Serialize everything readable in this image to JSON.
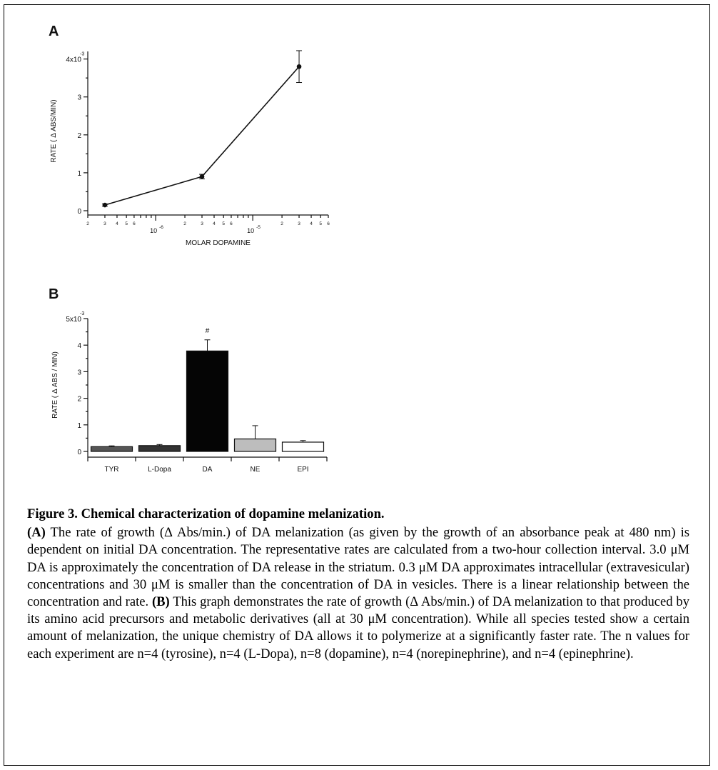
{
  "figure": {
    "panel_a_letter": "A",
    "panel_b_letter": "B"
  },
  "chart_data": [
    {
      "type": "line",
      "panel": "A",
      "x_scale": "log",
      "xlabel": "MOLAR DOPAMINE",
      "ylabel": "RATE ( Δ ABS/MIN)",
      "xlim": [
        2e-07,
        6e-05
      ],
      "ylim": [
        0,
        0.0042
      ],
      "x_tick_major_labels": [
        "10",
        "10"
      ],
      "x_tick_major_exponents": [
        "-6",
        "-5"
      ],
      "x_tick_minor_labels": [
        "2",
        "3",
        "4",
        "5",
        "6",
        "2",
        "3",
        "4",
        "5",
        "6",
        "2",
        "3",
        "4",
        "5",
        "6"
      ],
      "y_tick_labels": [
        "0",
        "1",
        "2",
        "3",
        "4x10"
      ],
      "y_tick_top_exponent": "-3",
      "series": [
        {
          "x": [
            3e-07,
            3e-06,
            3e-05
          ],
          "y": [
            0.00015,
            0.0009,
            0.0038
          ],
          "error": [
            3e-05,
            6e-05,
            0.00042
          ]
        }
      ]
    },
    {
      "type": "bar",
      "panel": "B",
      "ylabel": "RATE ( Δ ABS / MIN)",
      "ylim": [
        0,
        0.005
      ],
      "y_tick_labels": [
        "0",
        "1",
        "2",
        "3",
        "4",
        "5x10"
      ],
      "y_tick_top_exponent": "-3",
      "categories": [
        "TYR",
        "L-Dopa",
        "DA",
        "NE",
        "EPI"
      ],
      "values": [
        0.00018,
        0.00022,
        0.00378,
        0.00047,
        0.00035
      ],
      "errors": [
        3e-05,
        4e-05,
        0.00042,
        0.0005,
        6e-05
      ],
      "bar_colors": [
        "#555555",
        "#333333",
        "#050505",
        "#bdbdbd",
        "#ffffff"
      ],
      "annotations": [
        {
          "category": "DA",
          "text": "#"
        }
      ]
    }
  ],
  "caption": {
    "title": "Figure 3. Chemical characterization of dopamine melanization.",
    "a_label": "(A)",
    "a_text": " The rate of growth (Δ Abs/min.) of DA melanization (as given by the growth of an absorbance peak at 480 nm) is dependent on initial DA concentration. The representative rates are calculated from a two-hour collection interval. 3.0 μM DA is approximately the concentration of DA release in the striatum. 0.3 μM DA approximates intracellular (extravesicular) concentrations and 30 μM is smaller than the concentration of DA in vesicles. There is a linear relationship between the concentration and rate. ",
    "b_label": "(B)",
    "b_text": " This graph demonstrates the rate of growth (Δ Abs/min.) of DA melanization to that produced by its amino acid precursors and metabolic derivatives (all at 30 μM concentration). While all species tested show a certain amount of melanization, the unique chemistry of DA allows it to polymerize at a significantly faster rate. The n values for each experiment are n=4 (tyrosine), n=4 (L-Dopa), n=8 (dopamine), n=4 (norepinephrine), and n=4 (epinephrine)."
  }
}
